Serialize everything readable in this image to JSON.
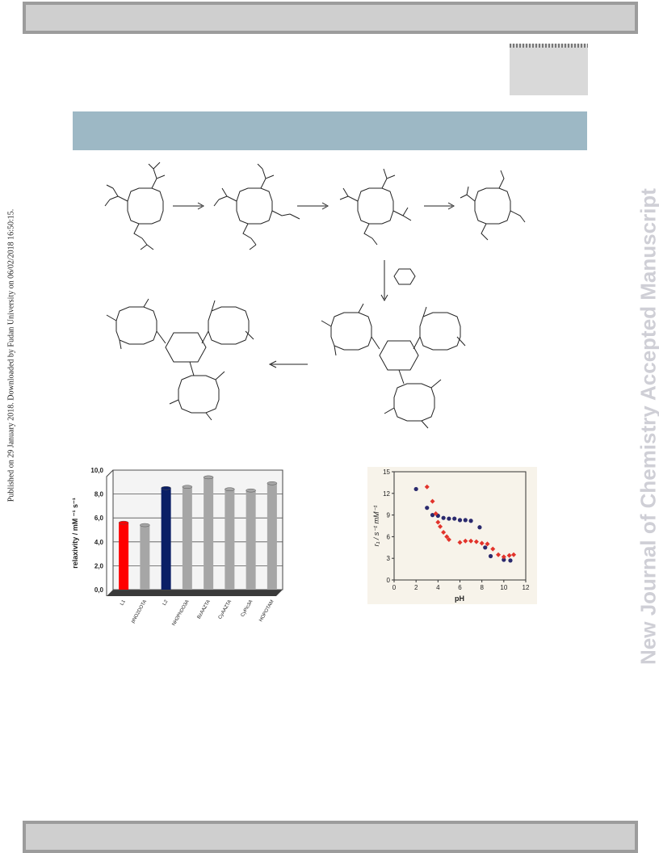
{
  "side_text": {
    "published": "Published on 29 January 2018. Downloaded by Fudan University on 06/02/2018 16:50:15.",
    "watermark": "New Journal of Chemistry Accepted Manuscript"
  },
  "colors": {
    "banner": "#9db8c5",
    "red_bar": "#ff0000",
    "navy_bar": "#0a1f66",
    "gray_bar": "#a6a6a6",
    "circle": "#2b2a6e",
    "diamond": "#e2332b"
  },
  "chart_data": [
    {
      "type": "bar",
      "categories": [
        "L1",
        "pNO2DOTA",
        "L2",
        "NH2PhDO3A",
        "BzAAZTA",
        "CyAAZTA",
        "CyPic3A",
        "HOPOTAM"
      ],
      "values": [
        5.6,
        5.4,
        8.5,
        8.6,
        9.4,
        8.4,
        8.3,
        8.9
      ],
      "bar_colors": [
        "red",
        "gray",
        "navy",
        "gray",
        "gray",
        "gray",
        "gray",
        "gray"
      ],
      "ylabel": "relaxivity / mM ⁻¹ s⁻¹",
      "ylim": [
        0,
        10
      ],
      "yticks": [
        "0,0",
        "2,0",
        "4,0",
        "6,0",
        "8,0",
        "10,0"
      ],
      "grid": true
    },
    {
      "type": "scatter",
      "xlabel": "pH",
      "ylabel": "r₁ / s⁻¹ mM⁻¹",
      "xlim": [
        0,
        12
      ],
      "ylim": [
        0,
        15
      ],
      "xticks": [
        "0",
        "2",
        "4",
        "6",
        "8",
        "10",
        "12"
      ],
      "yticks": [
        "0",
        "3",
        "6",
        "9",
        "12",
        "15"
      ],
      "series": [
        {
          "marker": "circle",
          "x": [
            2.0,
            3.0,
            3.5,
            4.0,
            4.5,
            5.0,
            5.5,
            6.0,
            6.5,
            7.0,
            7.8,
            8.3,
            8.8,
            10.0,
            10.6
          ],
          "y": [
            12.6,
            10.0,
            9.0,
            8.9,
            8.6,
            8.5,
            8.5,
            8.3,
            8.3,
            8.2,
            7.3,
            4.5,
            3.3,
            2.8,
            2.7
          ]
        },
        {
          "marker": "diamond",
          "x": [
            3.0,
            3.5,
            3.8,
            4.0,
            4.2,
            4.5,
            4.8,
            5.0,
            6.0,
            6.5,
            7.0,
            7.5,
            8.0,
            8.5,
            9.0,
            9.5,
            10.0,
            10.5,
            10.9
          ],
          "y": [
            12.9,
            10.9,
            9.2,
            8.0,
            7.4,
            6.6,
            6.0,
            5.6,
            5.2,
            5.4,
            5.4,
            5.3,
            5.1,
            5.0,
            4.3,
            3.5,
            3.2,
            3.4,
            3.5
          ]
        }
      ]
    }
  ]
}
